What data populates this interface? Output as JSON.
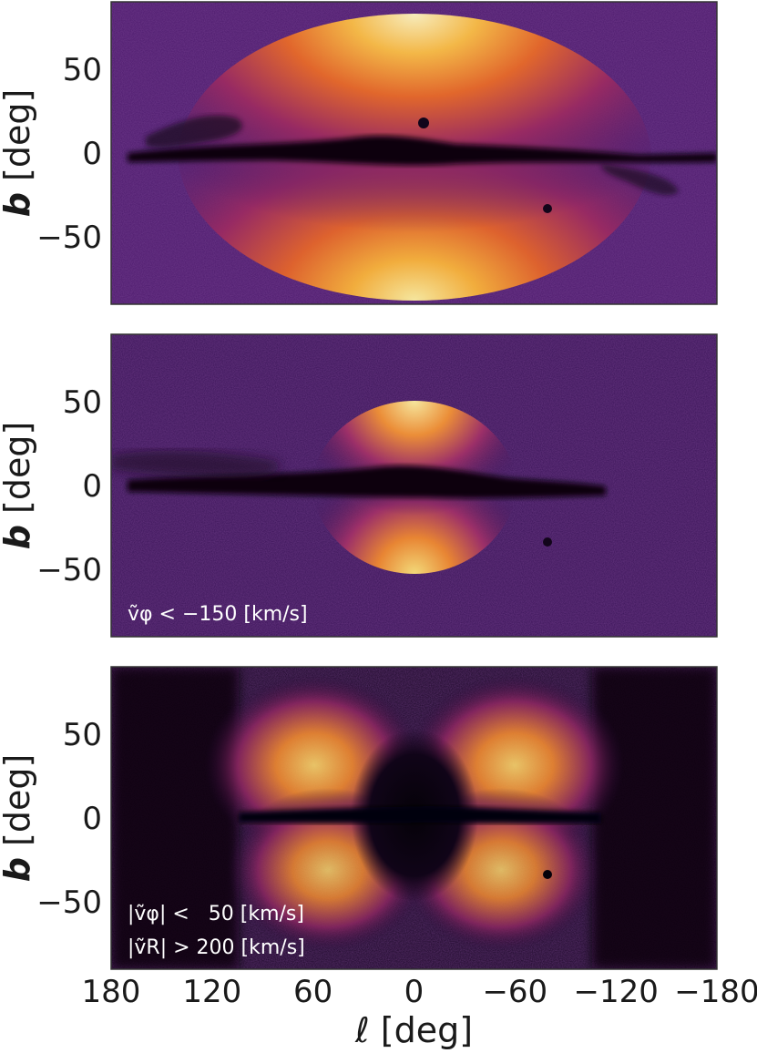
{
  "chart_data": [
    {
      "type": "heatmap",
      "panel": "all",
      "xlabel_var": "ℓ",
      "xlabel_unit": "[deg]",
      "ylabel_var": "b",
      "ylabel_unit": "[deg]",
      "xlim": [
        180,
        -180
      ],
      "ylim": [
        -90,
        90
      ],
      "xticks": [
        180,
        120,
        60,
        0,
        -60,
        -120,
        -180
      ],
      "yticks": [
        50,
        0,
        -50
      ],
      "annotation": [],
      "colormap": "inferno",
      "features": {
        "bulge_center": [
          0,
          0
        ],
        "disk_extinction_band_b": [
          -3,
          3
        ],
        "bright_lobes": "above and below plane near l=0"
      }
    },
    {
      "type": "heatmap",
      "panel": "v_phi_retrograde",
      "xlabel_var": "ℓ",
      "xlabel_unit": "[deg]",
      "ylabel_var": "b",
      "ylabel_unit": "[deg]",
      "xlim": [
        180,
        -180
      ],
      "ylim": [
        -90,
        90
      ],
      "xticks": [
        180,
        120,
        60,
        0,
        -60,
        -120,
        -180
      ],
      "yticks": [
        50,
        0,
        -50
      ],
      "annotation": [
        "ṽφ < −150 [km/s]"
      ],
      "colormap": "inferno"
    },
    {
      "type": "heatmap",
      "panel": "radial",
      "xlabel_var": "ℓ",
      "xlabel_unit": "[deg]",
      "ylabel_var": "b",
      "ylabel_unit": "[deg]",
      "xlim": [
        180,
        -180
      ],
      "ylim": [
        -90,
        90
      ],
      "xticks": [
        180,
        120,
        60,
        0,
        -60,
        -120,
        -180
      ],
      "yticks": [
        50,
        0,
        -50
      ],
      "annotation": [
        "|ṽφ| <   50 [km/s]",
        "|ṽR| > 200 [km/s]"
      ],
      "colormap": "inferno"
    }
  ],
  "tick_labels": {
    "x": [
      "180",
      "120",
      "60",
      "0",
      "−60",
      "−120",
      "−180"
    ],
    "y": [
      "50",
      "0",
      "−50"
    ]
  },
  "colors": {
    "background_dark": "#0a0410",
    "mid_purple": "#4a1a6a",
    "orange": "#f07a20",
    "yellow": "#fbe37a",
    "frame": "#333333"
  }
}
